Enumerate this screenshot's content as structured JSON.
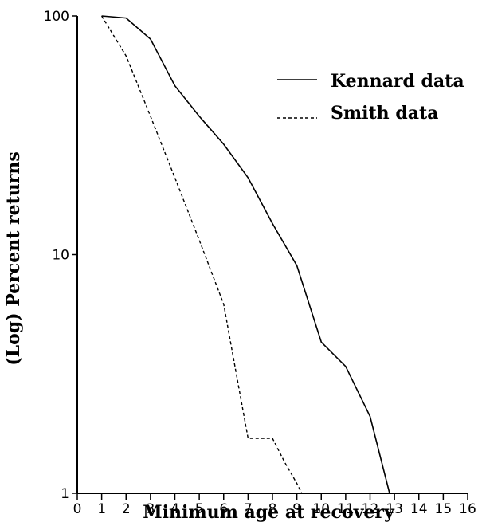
{
  "chart_data": {
    "type": "line",
    "xlabel": "Minimum age at recovery",
    "ylabel": "(Log) Percent returns",
    "yscale": "log",
    "xlim": [
      0,
      16
    ],
    "ylim": [
      1,
      100
    ],
    "xticks": [
      0,
      1,
      2,
      3,
      4,
      5,
      6,
      7,
      8,
      9,
      10,
      11,
      12,
      13,
      14,
      15,
      16
    ],
    "yticks": [
      1,
      10,
      100
    ],
    "grid": false,
    "legend_position": "top-right",
    "series": [
      {
        "name": "Kennard data",
        "style": "solid",
        "x": [
          1,
          2,
          3,
          4,
          5,
          6,
          7,
          8,
          9,
          10,
          11,
          12,
          12.8
        ],
        "y": [
          100,
          98,
          80,
          51,
          38,
          29,
          21,
          13.5,
          9,
          4.3,
          3.4,
          2.1,
          1
        ]
      },
      {
        "name": "Smith data",
        "style": "dashed",
        "x": [
          1,
          2,
          3,
          4,
          5,
          6,
          6.3,
          7,
          8,
          8.5,
          9,
          9.2
        ],
        "y": [
          100,
          68,
          38,
          21,
          11.5,
          6.2,
          4.2,
          1.7,
          1.7,
          1.35,
          1.1,
          1
        ]
      }
    ]
  }
}
